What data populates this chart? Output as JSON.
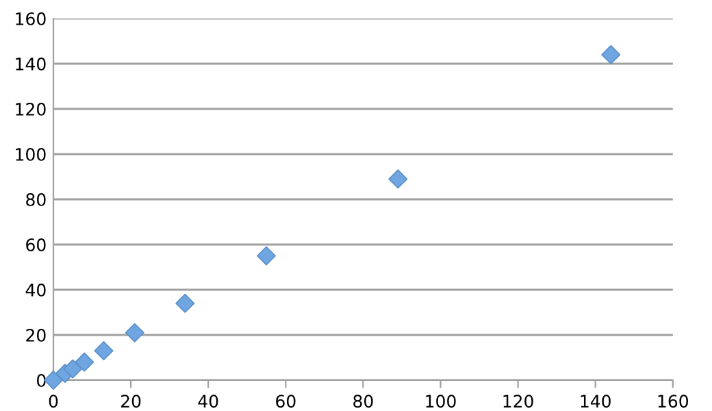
{
  "chart_data": {
    "type": "scatter",
    "x": [
      0,
      3,
      5,
      8,
      13,
      21,
      34,
      55,
      89,
      144
    ],
    "series": [
      {
        "color": "#6fa5e0",
        "values": [
          0,
          3,
          5,
          8,
          13,
          21,
          34,
          55,
          89,
          144
        ]
      }
    ],
    "xlim": [
      0,
      160
    ],
    "xticks": [
      0,
      20,
      40,
      60,
      80,
      100,
      120,
      140,
      160
    ],
    "ylim": [
      0,
      160
    ],
    "yticks": [
      0,
      20,
      40,
      60,
      80,
      100,
      120,
      140,
      160
    ],
    "grid": "y",
    "marker": "diamond",
    "legend": false
  }
}
